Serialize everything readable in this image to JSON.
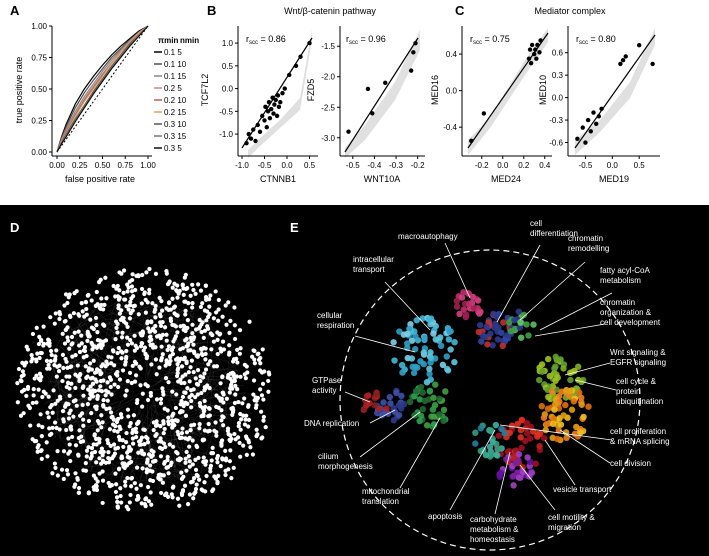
{
  "panels": {
    "A": {
      "letter": "A",
      "xlabel": "false positive rate",
      "ylabel": "true positive rate",
      "xticks": [
        "0.00",
        "0.25",
        "0.50",
        "0.75",
        "1.00"
      ],
      "yticks": [
        "0.00",
        "0.25",
        "0.50",
        "0.75",
        "1.00"
      ],
      "legend_header": [
        "πmin",
        "nmin"
      ],
      "legend": [
        {
          "label": "0.1 5",
          "color": "#000000"
        },
        {
          "label": "0.1 10",
          "color": "#4d4d4d"
        },
        {
          "label": "0.1 15",
          "color": "#888888"
        },
        {
          "label": "0.2 5",
          "color": "#c48a8a"
        },
        {
          "label": "0.2 10",
          "color": "#b06060"
        },
        {
          "label": "0.2 15",
          "color": "#e0a050"
        },
        {
          "label": "0.3 10",
          "color": "#555555"
        },
        {
          "label": "0.3 15",
          "color": "#777777"
        },
        {
          "label": "0.3 5",
          "color": "#111111"
        }
      ]
    },
    "B": {
      "letter": "B",
      "title": "Wnt/β-catenin pathway",
      "left": {
        "corr": "r",
        "corr_sub": "scc",
        "corr_val": " = 0.86",
        "xlabel": "CTNNB1",
        "ylabel": "TCF7L2",
        "xticks": [
          "-1.0",
          "-0.5",
          "0.0",
          "0.5"
        ],
        "yticks": [
          "-1.0",
          "-0.5",
          "0.0",
          "0.5",
          "1.0"
        ]
      },
      "right": {
        "corr": "r",
        "corr_sub": "scc",
        "corr_val": " = 0.96",
        "xlabel": "WNT10A",
        "ylabel": "FZD5",
        "xticks": [
          "-0.5",
          "-0.4",
          "-0.3",
          "-0.2"
        ],
        "yticks": [
          "-3.0",
          "-2.5",
          "-2.0",
          "-1.5"
        ]
      }
    },
    "C": {
      "letter": "C",
      "title": "Mediator complex",
      "left": {
        "corr": "r",
        "corr_sub": "scc",
        "corr_val": " = 0.75",
        "xlabel": "MED24",
        "ylabel": "MED16",
        "xticks": [
          "-0.2",
          "0.0",
          "0.2",
          "0.4"
        ],
        "yticks": [
          "-0.4",
          "0.0",
          "0.4"
        ]
      },
      "right": {
        "corr": "r",
        "corr_sub": "scc",
        "corr_val": " = 0.80",
        "xlabel": "MED19",
        "ylabel": "MED10",
        "xticks": [
          "-0.5",
          "0.0",
          "0.5"
        ],
        "yticks": [
          "-0.6",
          "-0.3",
          "0.0",
          "0.3",
          "0.6"
        ]
      }
    },
    "D": {
      "letter": "D"
    },
    "E": {
      "letter": "E",
      "labels": [
        "macroautophagy",
        "cell differentiation",
        "chromatin remodelling",
        "intracellular transport",
        "fatty acyl-CoA metabolism",
        "chromatin organization & cell development",
        "cellular respiration",
        "Wnt signaling & EGFR signaling",
        "cell cycle & protein ubiquitination",
        "GTPase activity",
        "DNA replication",
        "cell proliferation & mRNA splicing",
        "cilium morphogenesis",
        "cell division",
        "mitochondrial translation",
        "vesicle transport",
        "apoptosis",
        "cell motility & migration",
        "carbohydrate metabolism & homeostasis"
      ]
    }
  },
  "chart_data": [
    {
      "type": "line",
      "panel": "A",
      "xlabel": "false positive rate",
      "ylabel": "true positive rate",
      "xlim": [
        0,
        1
      ],
      "ylim": [
        0,
        1
      ],
      "series": [
        {
          "name": "0.1 5",
          "x": [
            0,
            0.05,
            0.1,
            0.2,
            0.3,
            0.4,
            0.5,
            0.6,
            0.7,
            0.8,
            0.9,
            1
          ],
          "y": [
            0,
            0.12,
            0.22,
            0.38,
            0.5,
            0.6,
            0.69,
            0.77,
            0.84,
            0.9,
            0.96,
            1
          ]
        },
        {
          "name": "0.1 10",
          "x": [
            0,
            0.05,
            0.1,
            0.2,
            0.3,
            0.4,
            0.5,
            0.6,
            0.7,
            0.8,
            0.9,
            1
          ],
          "y": [
            0,
            0.11,
            0.2,
            0.35,
            0.47,
            0.57,
            0.66,
            0.75,
            0.82,
            0.89,
            0.95,
            1
          ]
        },
        {
          "name": "0.1 15",
          "x": [
            0,
            0.05,
            0.1,
            0.2,
            0.3,
            0.4,
            0.5,
            0.6,
            0.7,
            0.8,
            0.9,
            1
          ],
          "y": [
            0,
            0.1,
            0.18,
            0.32,
            0.44,
            0.54,
            0.64,
            0.73,
            0.81,
            0.88,
            0.95,
            1
          ]
        },
        {
          "name": "0.2 5",
          "x": [
            0,
            0.05,
            0.1,
            0.2,
            0.3,
            0.4,
            0.5,
            0.6,
            0.7,
            0.8,
            0.9,
            1
          ],
          "y": [
            0,
            0.09,
            0.17,
            0.3,
            0.42,
            0.52,
            0.62,
            0.71,
            0.8,
            0.88,
            0.95,
            1
          ]
        },
        {
          "name": "0.2 10",
          "x": [
            0,
            0.05,
            0.1,
            0.2,
            0.3,
            0.4,
            0.5,
            0.6,
            0.7,
            0.8,
            0.9,
            1
          ],
          "y": [
            0,
            0.085,
            0.16,
            0.29,
            0.41,
            0.51,
            0.61,
            0.7,
            0.79,
            0.87,
            0.94,
            1
          ]
        },
        {
          "name": "0.2 15",
          "x": [
            0,
            0.05,
            0.1,
            0.2,
            0.3,
            0.4,
            0.5,
            0.6,
            0.7,
            0.8,
            0.9,
            1
          ],
          "y": [
            0,
            0.08,
            0.15,
            0.28,
            0.4,
            0.5,
            0.6,
            0.7,
            0.79,
            0.87,
            0.94,
            1
          ]
        },
        {
          "name": "0.3 10",
          "x": [
            0,
            0.05,
            0.1,
            0.2,
            0.3,
            0.4,
            0.5,
            0.6,
            0.7,
            0.8,
            0.9,
            1
          ],
          "y": [
            0,
            0.075,
            0.14,
            0.26,
            0.37,
            0.48,
            0.58,
            0.68,
            0.77,
            0.86,
            0.93,
            1
          ]
        },
        {
          "name": "0.3 15",
          "x": [
            0,
            0.05,
            0.1,
            0.2,
            0.3,
            0.4,
            0.5,
            0.6,
            0.7,
            0.8,
            0.9,
            1
          ],
          "y": [
            0,
            0.07,
            0.13,
            0.25,
            0.36,
            0.47,
            0.57,
            0.67,
            0.76,
            0.85,
            0.93,
            1
          ]
        },
        {
          "name": "0.3 5",
          "x": [
            0,
            0.05,
            0.1,
            0.2,
            0.3,
            0.4,
            0.5,
            0.6,
            0.7,
            0.8,
            0.9,
            1
          ],
          "y": [
            0,
            0.065,
            0.12,
            0.24,
            0.35,
            0.46,
            0.56,
            0.66,
            0.75,
            0.84,
            0.92,
            1
          ]
        }
      ]
    },
    {
      "type": "scatter",
      "panel": "B-left",
      "xlabel": "CTNNB1",
      "ylabel": "TCF7L2",
      "xlim": [
        -1.0,
        0.6
      ],
      "ylim": [
        -1.35,
        1.2
      ],
      "x": [
        -0.9,
        -0.85,
        -0.8,
        -0.75,
        -0.7,
        -0.65,
        -0.6,
        -0.55,
        -0.5,
        -0.48,
        -0.45,
        -0.42,
        -0.4,
        -0.38,
        -0.35,
        -0.32,
        -0.3,
        -0.28,
        -0.25,
        -0.22,
        -0.2,
        -0.18,
        -0.15,
        -0.1,
        -0.05,
        0.05,
        0.2,
        0.3,
        0.5
      ],
      "y": [
        -1.2,
        -1.0,
        -1.1,
        -0.9,
        -1.15,
        -0.8,
        -0.95,
        -0.6,
        -0.7,
        -0.4,
        -0.85,
        -0.5,
        -0.3,
        -0.65,
        -0.45,
        -0.2,
        -0.55,
        -0.35,
        -0.25,
        -0.6,
        -0.15,
        -0.4,
        -0.3,
        -0.1,
        0.0,
        0.3,
        0.5,
        0.7,
        1.0
      ]
    },
    {
      "type": "scatter",
      "panel": "B-right",
      "xlabel": "WNT10A",
      "ylabel": "FZD5",
      "xlim": [
        -0.55,
        -0.18
      ],
      "ylim": [
        -3.2,
        -1.3
      ],
      "x": [
        -0.52,
        -0.43,
        -0.41,
        -0.35,
        -0.23,
        -0.22,
        -0.21
      ],
      "y": [
        -2.9,
        -2.2,
        -2.6,
        -2.1,
        -1.9,
        -1.6,
        -1.45
      ]
    },
    {
      "type": "scatter",
      "panel": "C-left",
      "xlabel": "MED24",
      "ylabel": "MED16",
      "xlim": [
        -0.35,
        0.45
      ],
      "ylim": [
        -0.65,
        0.62
      ],
      "x": [
        -0.3,
        -0.18,
        0.25,
        0.26,
        0.27,
        0.28,
        0.3,
        0.31,
        0.32,
        0.33,
        0.35,
        0.36
      ],
      "y": [
        -0.55,
        -0.25,
        0.35,
        0.45,
        0.3,
        0.5,
        0.4,
        0.45,
        0.35,
        0.5,
        0.42,
        0.55
      ]
    },
    {
      "type": "scatter",
      "panel": "C-right",
      "xlabel": "MED19",
      "ylabel": "MED10",
      "xlim": [
        -0.75,
        0.85
      ],
      "ylim": [
        -0.7,
        0.85
      ],
      "x": [
        -0.65,
        -0.55,
        -0.5,
        -0.45,
        -0.4,
        -0.35,
        -0.3,
        -0.25,
        -0.2,
        0.15,
        0.2,
        0.25,
        0.5,
        0.75
      ],
      "y": [
        -0.55,
        -0.4,
        -0.6,
        -0.3,
        -0.45,
        -0.2,
        -0.35,
        -0.25,
        -0.15,
        0.45,
        0.5,
        0.55,
        0.7,
        0.45
      ]
    }
  ]
}
